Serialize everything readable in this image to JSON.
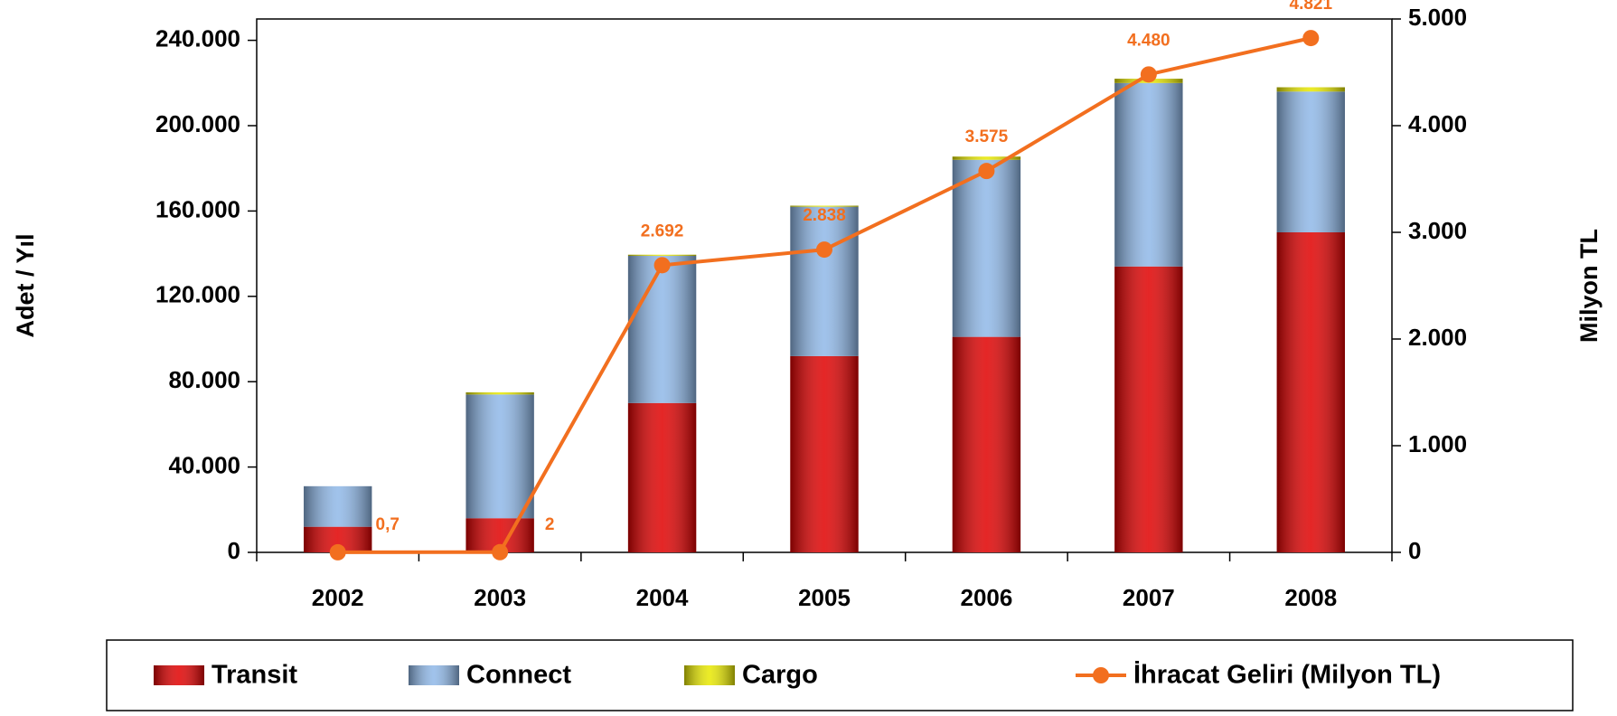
{
  "chart_data": {
    "type": "bar",
    "categories": [
      "2002",
      "2003",
      "2004",
      "2005",
      "2006",
      "2007",
      "2008"
    ],
    "stacked": true,
    "series": [
      {
        "name": "Transit",
        "color": "#e00000",
        "values": [
          12000,
          16000,
          70000,
          92000,
          101000,
          134000,
          150000
        ]
      },
      {
        "name": "Connect",
        "color": "#8fb8e8",
        "values": [
          19000,
          58000,
          69000,
          70000,
          83000,
          86000,
          66000
        ]
      },
      {
        "name": "Cargo",
        "color": "#e8e800",
        "values": [
          0,
          1000,
          500,
          500,
          1500,
          2000,
          2000
        ]
      },
      {
        "name": "İhracat Geliri (Milyon TL)",
        "type": "line",
        "axis": "y2",
        "color": "#f26f1f",
        "values": [
          0.7,
          2,
          2692,
          2838,
          3575,
          4480,
          4821
        ],
        "value_labels": [
          "0,7",
          "2",
          "2.692",
          "2.838",
          "3.575",
          "4.480",
          "4.821"
        ]
      }
    ],
    "y_label": "Adet / Yıl",
    "y2_label": "Milyon TL",
    "ylim": [
      0,
      250000
    ],
    "yticks": [
      0,
      {
        "value": 40000,
        "label": "40.000"
      },
      {
        "value": 80000,
        "label": "80.000"
      },
      {
        "value": 120000,
        "label": "120.000"
      },
      {
        "value": 160000,
        "label": "160.000"
      },
      {
        "value": 200000,
        "label": "200.000"
      },
      {
        "value": 240000,
        "label": "240.000"
      }
    ],
    "y2lim": [
      0,
      5000
    ],
    "y2ticks": [
      0,
      {
        "value": 1000,
        "label": "1.000"
      },
      {
        "value": 2000,
        "label": "2.000"
      },
      {
        "value": 3000,
        "label": "3.000"
      },
      {
        "value": 4000,
        "label": "4.000"
      },
      {
        "value": 5000,
        "label": "5.000"
      }
    ],
    "legend": "bottom",
    "grid": false
  }
}
